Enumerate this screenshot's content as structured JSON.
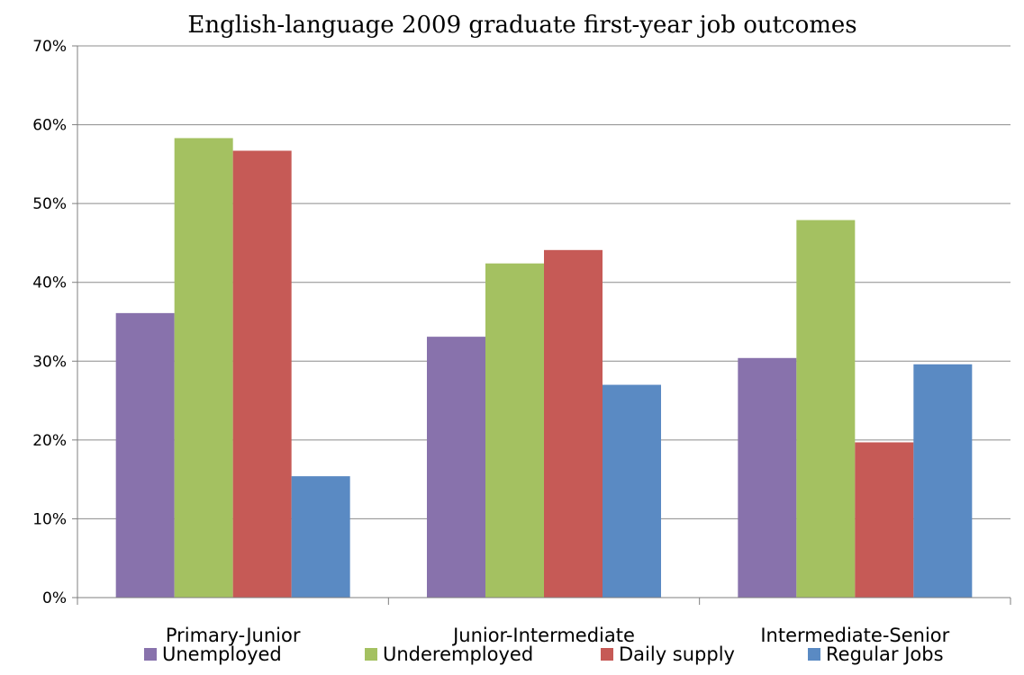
{
  "colors": {
    "Unemployed": "#8872AC",
    "Underemployed": "#A4C161",
    "Daily supply": "#C65A56",
    "Regular Jobs": "#5A8AC3",
    "gridline": "#8C8C8C",
    "axis": "#7F7F7F"
  },
  "chart_data": {
    "type": "bar",
    "title": "English-language 2009 graduate first-year job outcomes",
    "xlabel": "",
    "ylabel": "",
    "categories": [
      "Primary-Junior",
      "Junior-Intermediate",
      "Intermediate-Senior"
    ],
    "series": [
      {
        "name": "Unemployed",
        "values": [
          36.1,
          33.1,
          30.4
        ]
      },
      {
        "name": "Underemployed",
        "values": [
          58.3,
          42.4,
          47.9
        ]
      },
      {
        "name": "Daily supply",
        "values": [
          56.7,
          44.1,
          19.7
        ]
      },
      {
        "name": "Regular Jobs",
        "values": [
          15.4,
          27.0,
          29.6
        ]
      }
    ],
    "ylim": [
      0,
      70
    ],
    "yticks": [
      0,
      10,
      20,
      30,
      40,
      50,
      60,
      70
    ],
    "ytick_labels": [
      "0%",
      "10%",
      "20%",
      "30%",
      "40%",
      "50%",
      "60%",
      "70%"
    ],
    "grid": "horizontal",
    "legend_position": "bottom"
  }
}
